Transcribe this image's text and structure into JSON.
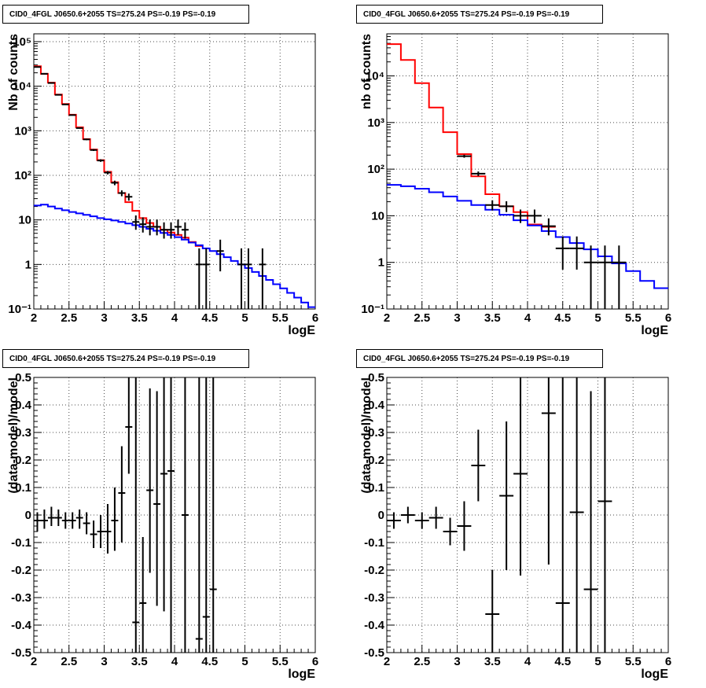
{
  "chart_data": [
    {
      "type": "step-histogram",
      "title": "CID0_4FGL J0650.6+2055 TS=275.24 PS=-0.19 PS=-0.19",
      "xlabel": "logE",
      "ylabel": "Nb of counts",
      "xlim": [
        2,
        6
      ],
      "ylim": [
        0.1,
        150000
      ],
      "yscale": "log",
      "grid": true,
      "xticks": [
        2,
        2.5,
        3,
        3.5,
        4,
        4.5,
        5,
        5.5,
        6
      ],
      "xtick_labels": [
        "2",
        "2.5",
        "3",
        "3.5",
        "4",
        "4.5",
        "5",
        "5.5",
        "6"
      ],
      "yticks": [
        0.1,
        1,
        10,
        100,
        1000,
        10000,
        100000
      ],
      "ytick_labels": [
        "10⁻¹",
        "1",
        "10",
        "10²",
        "10³",
        "10⁴",
        "10⁵"
      ],
      "bin_edges": [
        2.0,
        2.1,
        2.2,
        2.3,
        2.4,
        2.5,
        2.6,
        2.7,
        2.8,
        2.9,
        3.0,
        3.1,
        3.2,
        3.3,
        3.4,
        3.5,
        3.6,
        3.7,
        3.8,
        3.9,
        4.0,
        4.1,
        4.2,
        4.3,
        4.4,
        4.5,
        4.6,
        4.7,
        4.8,
        4.9,
        5.0,
        5.1,
        5.2,
        5.3,
        5.4,
        5.5,
        5.6,
        5.7,
        5.8,
        5.9,
        6.0
      ],
      "series": [
        {
          "kind": "step",
          "color": "#ff0000",
          "values": [
            28000,
            19000,
            12000,
            6500,
            4000,
            2300,
            1200,
            650,
            380,
            220,
            120,
            70,
            40,
            25,
            16,
            11,
            8.5,
            7,
            6,
            5.2,
            4.6,
            4.0,
            3.2,
            2.6
          ]
        },
        {
          "kind": "step",
          "color": "#0000ff",
          "values": [
            21,
            22,
            20,
            18,
            16.5,
            15,
            14,
            13,
            12,
            11,
            10.3,
            9.7,
            9.0,
            8.3,
            7.6,
            7.0,
            6.3,
            5.7,
            5.1,
            4.6,
            4.1,
            3.6,
            3.1,
            2.7,
            2.3,
            2.0,
            1.7,
            1.45,
            1.2,
            1.0,
            0.83,
            0.68,
            0.55,
            0.45,
            0.36,
            0.29,
            0.23,
            0.18,
            0.14,
            0.11
          ]
        },
        {
          "kind": "points",
          "color": "#000000",
          "x": [
            2.05,
            2.15,
            2.25,
            2.35,
            2.45,
            2.55,
            2.65,
            2.75,
            2.85,
            2.95,
            3.05,
            3.15,
            3.25,
            3.35,
            3.45,
            3.55,
            3.65,
            3.75,
            3.85,
            3.95,
            4.05,
            4.15,
            4.35,
            4.45,
            4.65,
            4.95,
            5.05,
            5.25
          ],
          "y": [
            27000,
            19000,
            11800,
            6400,
            3900,
            2250,
            1150,
            640,
            370,
            215,
            115,
            68,
            40,
            33,
            9,
            8,
            7,
            7,
            6,
            6,
            7,
            6,
            1,
            1,
            2,
            1,
            1,
            1
          ],
          "ylow": [
            26500,
            18700,
            11600,
            6300,
            3830,
            2200,
            1120,
            615,
            352,
            201,
            105,
            60,
            34,
            27,
            6,
            5.2,
            4.5,
            4.5,
            3.8,
            3.8,
            4.6,
            3.8,
            0.05,
            0.05,
            0.7,
            0.05,
            0.05,
            0.05
          ],
          "yhigh": [
            27500,
            19300,
            12000,
            6500,
            3970,
            2300,
            1180,
            665,
            388,
            229,
            125,
            76,
            46,
            39,
            12.6,
            11.4,
            10.2,
            10.2,
            8.8,
            8.8,
            10.2,
            8.8,
            2.3,
            2.3,
            3.6,
            2.3,
            2.3,
            2.3
          ]
        }
      ]
    },
    {
      "type": "step-histogram",
      "title": "CID0_4FGL J0650.6+2055 TS=275.24 PS=-0.19 PS=-0.19",
      "xlabel": "logE",
      "ylabel": "nb of counts",
      "xlim": [
        2,
        6
      ],
      "ylim": [
        0.1,
        80000
      ],
      "yscale": "log",
      "grid": true,
      "xticks": [
        2,
        2.5,
        3,
        3.5,
        4,
        4.5,
        5,
        5.5,
        6
      ],
      "xtick_labels": [
        "2",
        "2.5",
        "3",
        "3.5",
        "4",
        "4.5",
        "5",
        "5.5",
        "6"
      ],
      "yticks": [
        0.1,
        1,
        10,
        100,
        1000,
        10000
      ],
      "ytick_labels": [
        "10⁻¹",
        "1",
        "10",
        "10²",
        "10³",
        "10⁴"
      ],
      "bin_edges": [
        2.0,
        2.2,
        2.4,
        2.6,
        2.8,
        3.0,
        3.2,
        3.4,
        3.6,
        3.8,
        4.0,
        4.2,
        4.4,
        4.6,
        4.8,
        5.0,
        5.2,
        5.4,
        5.6,
        5.8,
        6.0
      ],
      "series": [
        {
          "kind": "step",
          "color": "#ff0000",
          "values": [
            48000,
            22000,
            7000,
            2100,
            620,
            210,
            70,
            29,
            16,
            12,
            6.5,
            5.8
          ]
        },
        {
          "kind": "step",
          "color": "#0000ff",
          "values": [
            46,
            43,
            38,
            32,
            26,
            21,
            17,
            13.5,
            10.5,
            8,
            6.2,
            4.7,
            3.5,
            2.6,
            1.9,
            1.35,
            0.95,
            0.65,
            0.4,
            0.28
          ]
        },
        {
          "kind": "points",
          "color": "#000000",
          "x": [
            3.1,
            3.3,
            3.5,
            3.7,
            3.9,
            4.1,
            4.3,
            4.5,
            4.7,
            4.9,
            5.1,
            5.3
          ],
          "y": [
            190,
            80,
            17,
            16,
            10,
            10,
            6,
            2,
            2,
            1,
            1,
            1
          ],
          "ylow": [
            176,
            71,
            13,
            12,
            7,
            7,
            3.8,
            0.7,
            0.7,
            0.05,
            0.05,
            0.05
          ],
          "yhigh": [
            204,
            89,
            21.5,
            20.5,
            13.6,
            13.6,
            8.8,
            3.6,
            3.6,
            2.3,
            2.3,
            2.3
          ]
        }
      ]
    },
    {
      "type": "scatter-errorbars",
      "title": "CID0_4FGL J0650.6+2055 TS=275.24 PS=-0.19 PS=-0.19",
      "xlabel": "logE",
      "ylabel": "(data-model)/model",
      "xlim": [
        2,
        6
      ],
      "ylim": [
        -0.5,
        0.5
      ],
      "yscale": "linear",
      "grid": true,
      "xticks": [
        2,
        2.5,
        3,
        3.5,
        4,
        4.5,
        5,
        5.5,
        6
      ],
      "xtick_labels": [
        "2",
        "2.5",
        "3",
        "3.5",
        "4",
        "4.5",
        "5",
        "5.5",
        "6"
      ],
      "yticks": [
        -0.5,
        -0.4,
        -0.3,
        -0.2,
        -0.1,
        0,
        0.1,
        0.2,
        0.3,
        0.4,
        0.5
      ],
      "ytick_labels": [
        "-0.5",
        "-0.4",
        "-0.3",
        "-0.2",
        "-0.1",
        "0",
        "0.1",
        "0.2",
        "0.3",
        "0.4",
        "0.5"
      ],
      "series": [
        {
          "kind": "points",
          "color": "#000000",
          "xhalf": 0.05,
          "x": [
            2.05,
            2.15,
            2.25,
            2.35,
            2.45,
            2.55,
            2.65,
            2.75,
            2.85,
            2.95,
            3.05,
            3.15,
            3.25,
            3.35,
            3.45,
            3.55,
            3.65,
            3.75,
            3.85,
            3.95,
            4.15,
            4.35,
            4.45,
            4.55
          ],
          "y": [
            -0.02,
            -0.02,
            -0.01,
            -0.01,
            -0.02,
            -0.02,
            -0.01,
            -0.03,
            -0.07,
            -0.06,
            -0.06,
            -0.02,
            0.08,
            0.32,
            -0.39,
            -0.32,
            0.09,
            0.04,
            0.15,
            0.16,
            0.0,
            -0.45,
            -0.37,
            -0.27
          ],
          "ylow": [
            -0.06,
            -0.05,
            -0.04,
            -0.04,
            -0.05,
            -0.05,
            -0.05,
            -0.07,
            -0.12,
            -0.12,
            -0.14,
            -0.13,
            -0.1,
            0.15,
            -0.5,
            -0.5,
            -0.21,
            -0.33,
            -0.35,
            -0.5,
            -0.5,
            -0.5,
            -0.5,
            -0.5
          ],
          "yhigh": [
            0.01,
            0.02,
            0.03,
            0.02,
            0.01,
            0.01,
            0.02,
            0.01,
            -0.02,
            0.0,
            0.04,
            0.1,
            0.25,
            0.5,
            0.5,
            -0.08,
            0.46,
            0.45,
            0.5,
            0.5,
            0.5,
            0.5,
            0.5,
            0.5
          ]
        }
      ]
    },
    {
      "type": "scatter-errorbars",
      "title": "CID0_4FGL J0650.6+2055 TS=275.24 PS=-0.19 PS=-0.19",
      "xlabel": "logE",
      "ylabel": "(data-model)/model",
      "xlim": [
        2,
        6
      ],
      "ylim": [
        -0.5,
        0.5
      ],
      "yscale": "linear",
      "grid": true,
      "xticks": [
        2,
        2.5,
        3,
        3.5,
        4,
        4.5,
        5,
        5.5,
        6
      ],
      "xtick_labels": [
        "2",
        "2.5",
        "3",
        "3.5",
        "4",
        "4.5",
        "5",
        "5.5",
        "6"
      ],
      "yticks": [
        -0.5,
        -0.4,
        -0.3,
        -0.2,
        -0.1,
        0,
        0.1,
        0.2,
        0.3,
        0.4,
        0.5
      ],
      "ytick_labels": [
        "-0.5",
        "-0.4",
        "-0.3",
        "-0.2",
        "-0.1",
        "0",
        "0.1",
        "0.2",
        "0.3",
        "0.4",
        "0.5"
      ],
      "series": [
        {
          "kind": "points",
          "color": "#000000",
          "xhalf": 0.1,
          "x": [
            2.1,
            2.3,
            2.5,
            2.7,
            2.9,
            3.1,
            3.3,
            3.5,
            3.7,
            3.9,
            4.3,
            4.5,
            4.7,
            4.9,
            5.1
          ],
          "y": [
            -0.02,
            0.0,
            -0.02,
            -0.01,
            -0.06,
            -0.04,
            0.18,
            -0.36,
            0.07,
            0.15,
            0.37,
            -0.32,
            0.01,
            -0.27,
            0.05
          ],
          "ylow": [
            -0.05,
            -0.03,
            -0.05,
            -0.05,
            -0.11,
            -0.13,
            0.05,
            -0.5,
            -0.2,
            -0.22,
            -0.18,
            -0.5,
            -0.5,
            -0.5,
            -0.5
          ],
          "yhigh": [
            0.01,
            0.03,
            0.01,
            0.03,
            -0.01,
            0.05,
            0.31,
            -0.2,
            0.34,
            0.5,
            0.5,
            0.5,
            0.5,
            0.45,
            0.5
          ]
        }
      ]
    }
  ]
}
